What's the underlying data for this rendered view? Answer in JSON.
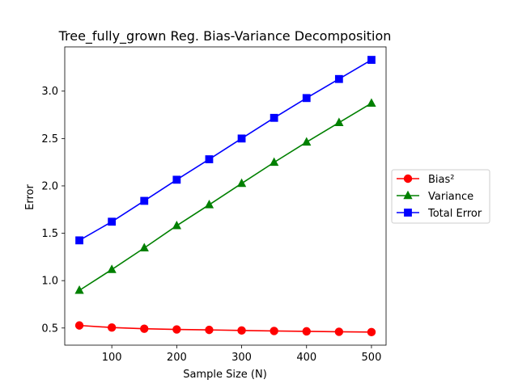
{
  "chart_data": {
    "type": "line",
    "title": "Tree_fully_grown Reg. Bias-Variance Decomposition",
    "xlabel": "Sample Size (N)",
    "ylabel": "Error",
    "x": [
      50,
      100,
      150,
      200,
      250,
      300,
      350,
      400,
      450,
      500
    ],
    "xlim": [
      27.5,
      522.5
    ],
    "ylim": [
      0.319,
      3.467
    ],
    "xticks": [
      100,
      200,
      300,
      400,
      500
    ],
    "yticks": [
      0.5,
      1.0,
      1.5,
      2.0,
      2.5,
      3.0
    ],
    "ytick_labels": [
      "0.5",
      "1.0",
      "1.5",
      "2.0",
      "2.5",
      "3.0"
    ],
    "grid": false,
    "legend_position": "outside-right",
    "series": [
      {
        "name": "Bias²",
        "color": "#ff0000",
        "marker": "circle",
        "values": [
          0.527,
          0.505,
          0.492,
          0.485,
          0.48,
          0.474,
          0.469,
          0.465,
          0.46,
          0.457
        ]
      },
      {
        "name": "Variance",
        "color": "#008000",
        "marker": "triangle",
        "values": [
          0.897,
          1.117,
          1.345,
          1.58,
          1.801,
          2.026,
          2.248,
          2.462,
          2.668,
          2.872
        ]
      },
      {
        "name": "Total Error",
        "color": "#0000ff",
        "marker": "square",
        "values": [
          1.425,
          1.622,
          1.842,
          2.065,
          2.281,
          2.5,
          2.718,
          2.927,
          3.128,
          3.33
        ]
      }
    ]
  }
}
